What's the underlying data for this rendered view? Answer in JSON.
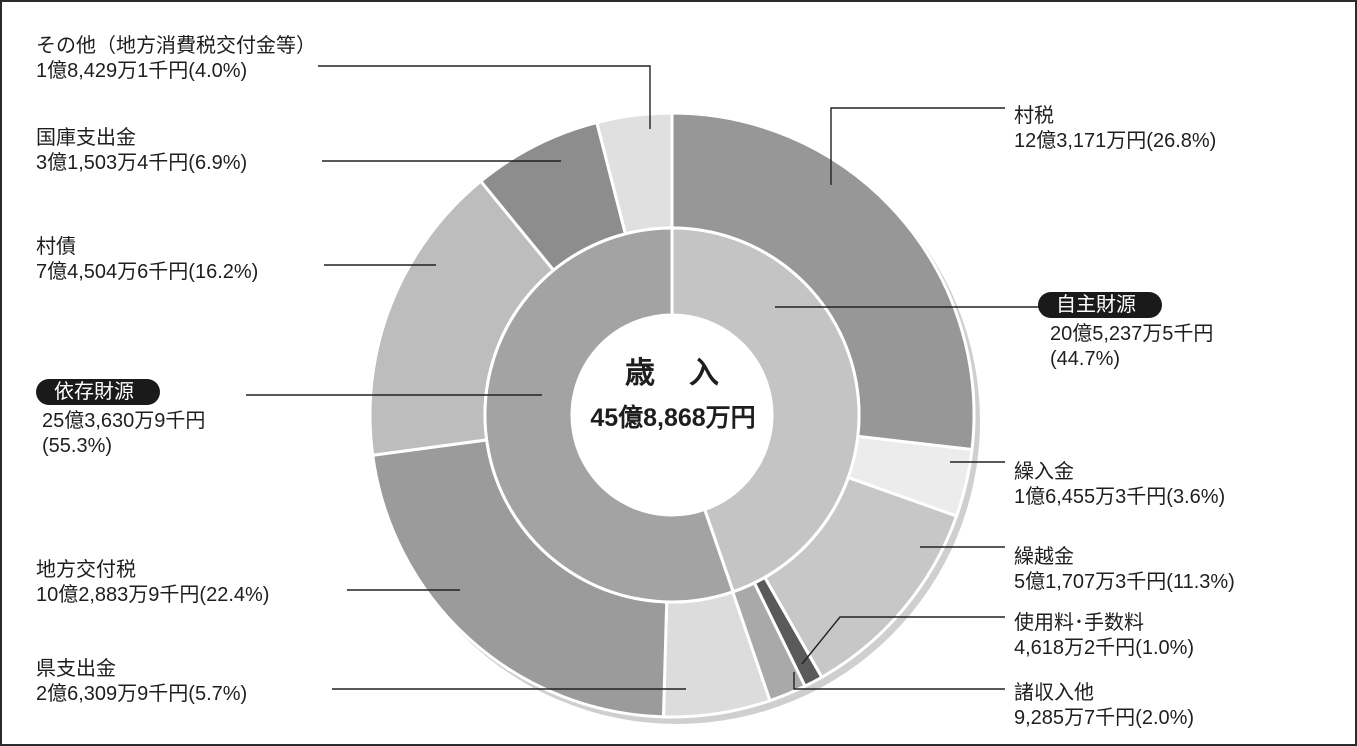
{
  "chart_data": {
    "type": "pie",
    "center": {
      "title": "歳　入",
      "total": "45億8,868万円"
    },
    "inner": [
      {
        "name": "自主財源",
        "amount": "20億5,237万5千円",
        "percent_text": "(44.7%)",
        "value": 44.7,
        "color": "#c4c4c4"
      },
      {
        "name": "依存財源",
        "amount": "25億3,630万9千円",
        "percent_text": "(55.3%)",
        "value": 55.3,
        "color": "#a3a3a3"
      }
    ],
    "outer": [
      {
        "name": "村税",
        "amount": "12億3,171万円",
        "percent_text": "(26.8%)",
        "value": 26.8,
        "color": "#979797"
      },
      {
        "name": "繰入金",
        "amount": "1億6,455万3千円",
        "percent_text": "(3.6%)",
        "value": 3.6,
        "color": "#ececec"
      },
      {
        "name": "繰越金",
        "amount": "5億1,707万3千円",
        "percent_text": "(11.3%)",
        "value": 11.3,
        "color": "#c7c7c7"
      },
      {
        "name": "使用料･手数料",
        "amount": "4,618万2千円",
        "percent_text": "(1.0%)",
        "value": 1.0,
        "color": "#5a5a5a"
      },
      {
        "name": "諸収入他",
        "amount": "9,285万7千円",
        "percent_text": "(2.0%)",
        "value": 2.0,
        "color": "#a9a9a9"
      },
      {
        "name": "県支出金",
        "amount": "2億6,309万9千円",
        "percent_text": "(5.7%)",
        "value": 5.7,
        "color": "#dcdcdc"
      },
      {
        "name": "地方交付税",
        "amount": "10億2,883万9千円",
        "percent_text": "(22.4%)",
        "value": 22.4,
        "color": "#9b9b9b"
      },
      {
        "name": "村債",
        "amount": "7億4,504万6千円",
        "percent_text": "(16.2%)",
        "value": 16.2,
        "color": "#bdbdbd"
      },
      {
        "name": "国庫支出金",
        "amount": "3億1,503万4千円",
        "percent_text": "(6.9%)",
        "value": 6.9,
        "color": "#8d8d8d"
      },
      {
        "name": "その他（地方消費税交付金等）",
        "amount": "1億8,429万1千円",
        "percent_text": "(4.0%)",
        "value": 4.0,
        "color": "#e0e0e0"
      }
    ]
  }
}
